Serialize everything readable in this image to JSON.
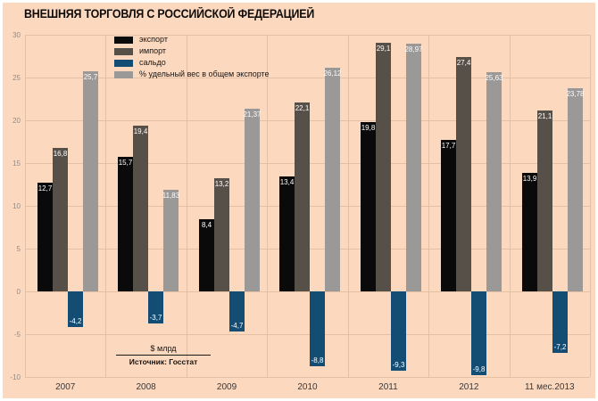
{
  "title": "ВНЕШНЯЯ ТОРГОВЛЯ С РОССИЙСКОЙ ФЕДЕРАЦИЕЙ",
  "note": {
    "unit": "$ млрд",
    "source": "Источник: Госстат"
  },
  "colors": {
    "background": "#fcd8be",
    "frame": "#ffffff",
    "grid": "#e4c0a5",
    "tick_label": "#8f8e8c",
    "axis_label": "#3c3835",
    "bar_value_label": "#ffffff",
    "export": "#0a0a0a",
    "import": "#575049",
    "saldo": "#134d74",
    "share": "#9b9997"
  },
  "chart_data": {
    "type": "bar",
    "title": "ВНЕШНЯЯ ТОРГОВЛЯ С РОССИЙСКОЙ ФЕДЕРАЦИЕЙ",
    "unit": "$ млрд (сальдо/экспорт/импорт), % (удельный вес)",
    "categories": [
      "2007",
      "2008",
      "2009",
      "2010",
      "2011",
      "2012",
      "11 мес.2013"
    ],
    "series": [
      {
        "key": "export",
        "name": "экспорт",
        "values": [
          12.7,
          15.7,
          8.4,
          13.4,
          19.8,
          17.7,
          13.9
        ]
      },
      {
        "key": "import",
        "name": "импорт",
        "values": [
          16.8,
          19.4,
          13.2,
          22.1,
          29.1,
          27.4,
          21.1
        ]
      },
      {
        "key": "saldo",
        "name": "сальдо",
        "values": [
          -4.2,
          -3.7,
          -4.7,
          -8.8,
          -9.3,
          -9.8,
          -7.2
        ]
      },
      {
        "key": "share",
        "name": "% удельный вес в общем экспорте",
        "values": [
          25.7,
          11.83,
          21.37,
          26.12,
          28.97,
          25.63,
          23.78
        ]
      }
    ],
    "ylim": [
      -10,
      30
    ],
    "ytick_step": 5,
    "yticks": [
      30,
      25,
      20,
      15,
      10,
      5,
      0,
      -5,
      -10
    ],
    "grid": true,
    "legend_position": "top-left-inside",
    "value_labels": true,
    "decimal_separator": ","
  }
}
